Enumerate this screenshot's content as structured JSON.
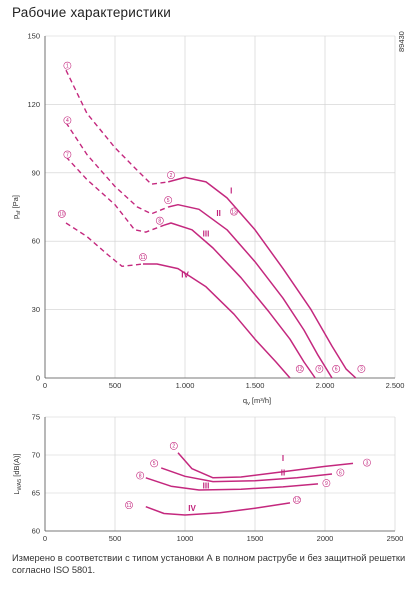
{
  "title": "Рабочие характеристики",
  "figure_id": "89430",
  "footnote": "Измерено в соответствии с типом установки А в полном раструбе и без защитной решетки согласно ISO 5801.",
  "colors": {
    "curve": "#c4287e",
    "grid": "#cfcfcf",
    "axis": "#555555",
    "text": "#333333"
  },
  "chart_data": [
    {
      "type": "line",
      "ylabel": "p_sf [Pa]",
      "xlabel": "q_v [m³/h]",
      "xlim": [
        0,
        2500
      ],
      "ylim": [
        0,
        150
      ],
      "x_ticks": [
        "0",
        "500",
        "1.000",
        "1.500",
        "2.000",
        "2.500"
      ],
      "y_ticks": [
        "0",
        "30",
        "60",
        "90",
        "120",
        "150"
      ],
      "x_tick_values": [
        0,
        500,
        1000,
        1500,
        2000,
        2500
      ],
      "y_tick_values": [
        0,
        30,
        60,
        90,
        120,
        150
      ],
      "grid": true,
      "curves": [
        {
          "label": "I",
          "label_pos": [
            1330,
            81
          ],
          "dashed": [
            [
              150,
              135
            ],
            [
              300,
              116
            ],
            [
              500,
              101
            ],
            [
              660,
              91
            ],
            [
              760,
              85
            ],
            [
              880,
              86
            ]
          ],
          "solid": [
            [
              880,
              86
            ],
            [
              1000,
              88
            ],
            [
              1150,
              86
            ],
            [
              1300,
              79
            ],
            [
              1500,
              65
            ],
            [
              1700,
              48
            ],
            [
              1900,
              30
            ],
            [
              2050,
              14
            ],
            [
              2150,
              4
            ],
            [
              2220,
              0
            ]
          ]
        },
        {
          "label": "II",
          "label_pos": [
            1240,
            71
          ],
          "dashed": [
            [
              150,
              112
            ],
            [
              300,
              98
            ],
            [
              500,
              84
            ],
            [
              660,
              75
            ],
            [
              760,
              72
            ],
            [
              880,
              75
            ]
          ],
          "solid": [
            [
              880,
              75
            ],
            [
              950,
              76
            ],
            [
              1100,
              74
            ],
            [
              1300,
              65
            ],
            [
              1500,
              51
            ],
            [
              1700,
              35
            ],
            [
              1850,
              21
            ],
            [
              1950,
              10
            ],
            [
              2050,
              0
            ]
          ]
        },
        {
          "label": "III",
          "label_pos": [
            1150,
            62
          ],
          "dashed": [
            [
              150,
              97
            ],
            [
              300,
              87
            ],
            [
              500,
              76
            ],
            [
              640,
              65
            ],
            [
              720,
              64
            ],
            [
              850,
              67
            ]
          ],
          "solid": [
            [
              850,
              67
            ],
            [
              900,
              68
            ],
            [
              1050,
              65
            ],
            [
              1200,
              57
            ],
            [
              1400,
              44
            ],
            [
              1600,
              29
            ],
            [
              1750,
              17
            ],
            [
              1850,
              7
            ],
            [
              1930,
              0
            ]
          ]
        },
        {
          "label": "IV",
          "label_pos": [
            1000,
            44
          ],
          "dashed": [
            [
              150,
              68
            ],
            [
              300,
              62
            ],
            [
              450,
              54
            ],
            [
              550,
              49
            ],
            [
              700,
              50
            ]
          ],
          "solid": [
            [
              700,
              50
            ],
            [
              800,
              50
            ],
            [
              950,
              48
            ],
            [
              1150,
              40
            ],
            [
              1350,
              28
            ],
            [
              1500,
              17
            ],
            [
              1650,
              7
            ],
            [
              1750,
              0
            ]
          ]
        }
      ],
      "markers": [
        {
          "id": "1",
          "x": 160,
          "y": 137
        },
        {
          "id": "2",
          "x": 900,
          "y": 89
        },
        {
          "id": "3",
          "x": 2260,
          "y": 4
        },
        {
          "id": "4",
          "x": 160,
          "y": 113
        },
        {
          "id": "5",
          "x": 880,
          "y": 78
        },
        {
          "id": "6",
          "x": 2080,
          "y": 4
        },
        {
          "id": "7",
          "x": 160,
          "y": 98
        },
        {
          "id": "8",
          "x": 820,
          "y": 69
        },
        {
          "id": "9",
          "x": 1960,
          "y": 4
        },
        {
          "id": "10",
          "x": 120,
          "y": 72
        },
        {
          "id": "11",
          "x": 700,
          "y": 53
        },
        {
          "id": "12",
          "x": 1820,
          "y": 4
        },
        {
          "id": "13",
          "x": 1350,
          "y": 73
        }
      ]
    },
    {
      "type": "line",
      "ylabel": "L_WA5 [dB(A)]",
      "xlabel": "q_v [m³/h]",
      "xlim": [
        0,
        2500
      ],
      "ylim": [
        60,
        75
      ],
      "x_ticks": [
        "0",
        "500",
        "1000",
        "1500",
        "2000",
        "2500"
      ],
      "y_ticks": [
        "60",
        "65",
        "70",
        "75"
      ],
      "x_tick_values": [
        0,
        500,
        1000,
        1500,
        2000,
        2500
      ],
      "y_tick_values": [
        60,
        65,
        70,
        75
      ],
      "grid": true,
      "curves": [
        {
          "label": "I",
          "label_pos": [
            1700,
            69.2
          ],
          "solid": [
            [
              950,
              70.3
            ],
            [
              1050,
              68.2
            ],
            [
              1200,
              67.0
            ],
            [
              1400,
              67.1
            ],
            [
              1700,
              67.8
            ],
            [
              2000,
              68.5
            ],
            [
              2200,
              68.9
            ]
          ]
        },
        {
          "label": "II",
          "label_pos": [
            1700,
            67.3
          ],
          "solid": [
            [
              830,
              68.3
            ],
            [
              1000,
              67.2
            ],
            [
              1200,
              66.5
            ],
            [
              1500,
              66.6
            ],
            [
              1800,
              67.0
            ],
            [
              2050,
              67.5
            ]
          ]
        },
        {
          "label": "III",
          "label_pos": [
            1150,
            65.6
          ],
          "solid": [
            [
              720,
              67.0
            ],
            [
              900,
              65.9
            ],
            [
              1100,
              65.4
            ],
            [
              1400,
              65.5
            ],
            [
              1700,
              65.8
            ],
            [
              1950,
              66.2
            ]
          ]
        },
        {
          "label": "IV",
          "label_pos": [
            1050,
            62.6
          ],
          "solid": [
            [
              720,
              63.2
            ],
            [
              850,
              62.3
            ],
            [
              1000,
              62.1
            ],
            [
              1250,
              62.4
            ],
            [
              1500,
              63.0
            ],
            [
              1750,
              63.7
            ]
          ]
        }
      ],
      "markers": [
        {
          "id": "2",
          "x": 920,
          "y": 71.2
        },
        {
          "id": "3",
          "x": 2300,
          "y": 69.0
        },
        {
          "id": "5",
          "x": 780,
          "y": 68.9
        },
        {
          "id": "6",
          "x": 2110,
          "y": 67.7
        },
        {
          "id": "8",
          "x": 680,
          "y": 67.3
        },
        {
          "id": "9",
          "x": 2010,
          "y": 66.3
        },
        {
          "id": "11",
          "x": 600,
          "y": 63.4
        },
        {
          "id": "12",
          "x": 1800,
          "y": 64.1
        }
      ]
    }
  ]
}
